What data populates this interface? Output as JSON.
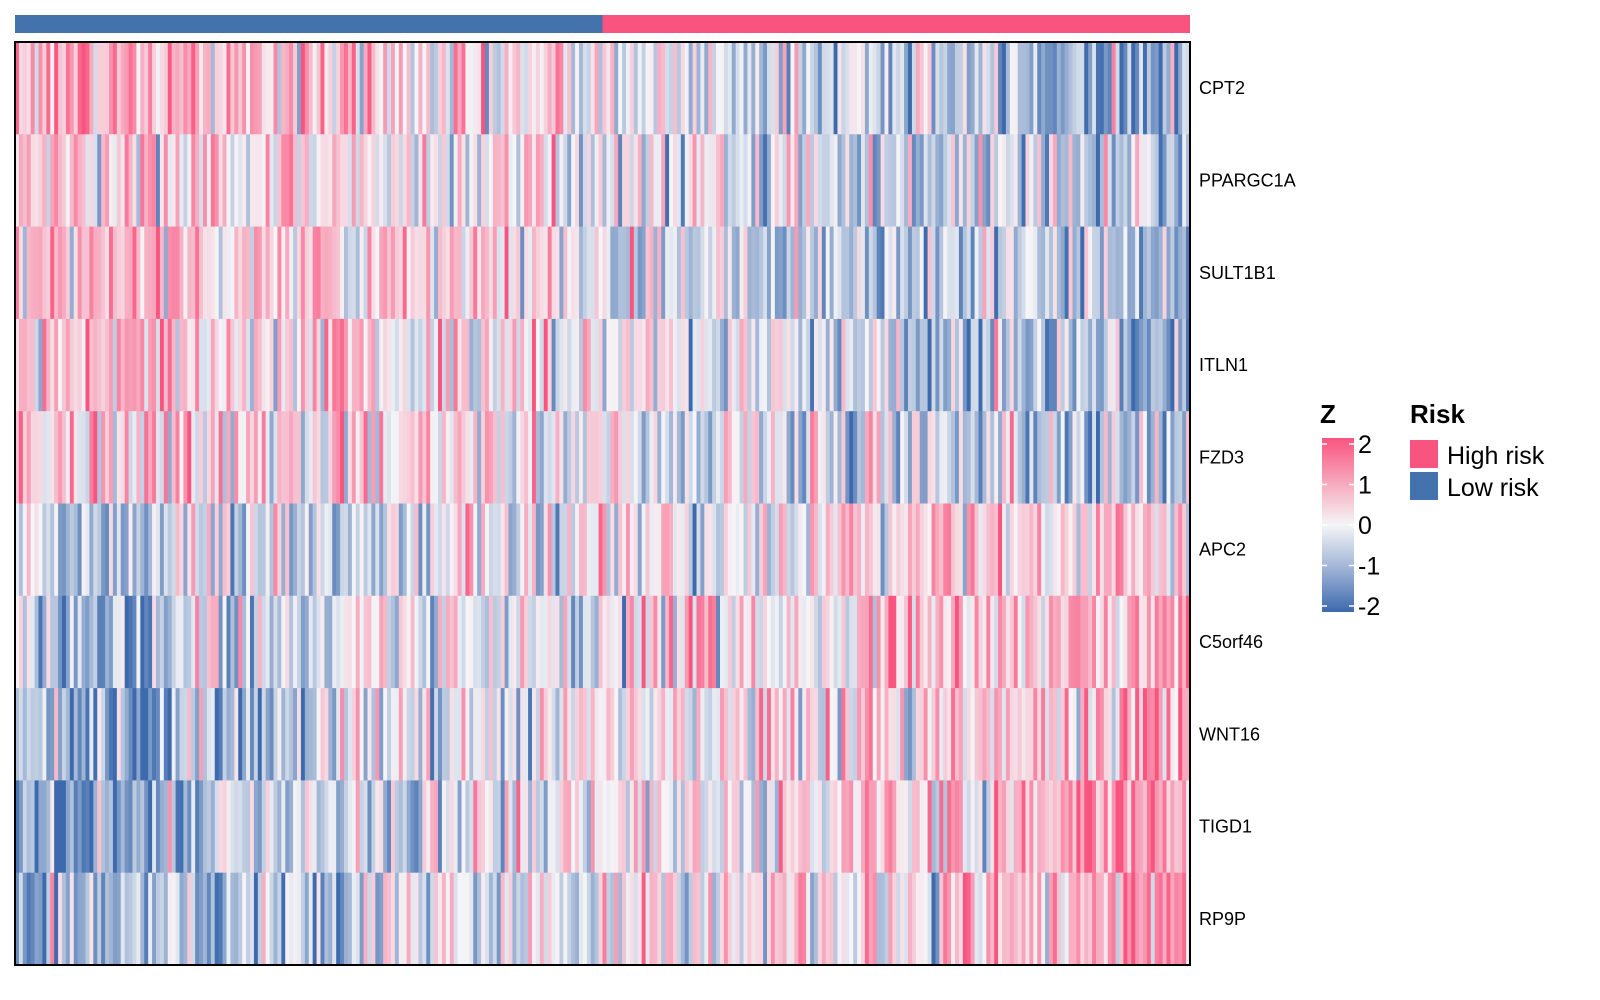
{
  "chart_data": {
    "type": "heatmap",
    "rows": [
      "CPT2",
      "PPARGC1A",
      "SULT1B1",
      "ITLN1",
      "FZD3",
      "APC2",
      "C5orf46",
      "WNT16",
      "TIGD1",
      "RP9P"
    ],
    "row_trend": [
      1.0,
      0.6,
      0.9,
      0.85,
      0.5,
      -0.55,
      -0.7,
      -0.8,
      -0.9,
      -1.05
    ],
    "n_samples": 300,
    "groups": [
      {
        "name": "Low risk",
        "count": 150,
        "color": "#4472ac"
      },
      {
        "name": "High risk",
        "count": 150,
        "color": "#f9547f"
      }
    ],
    "color_scale": {
      "title": "Z",
      "min": -2,
      "max": 2,
      "low_color": "#3c6aad",
      "mid_color": "#f5f5f7",
      "high_color": "#f9547f",
      "ticks": [
        "2",
        "1",
        "0",
        "-1",
        "-2"
      ],
      "tick_values": [
        2,
        1,
        0,
        -1,
        -2
      ]
    },
    "legend": {
      "title": "Risk",
      "items": [
        {
          "label": "High risk",
          "color": "#f9547f"
        },
        {
          "label": "Low risk",
          "color": "#4472ac"
        }
      ]
    }
  }
}
